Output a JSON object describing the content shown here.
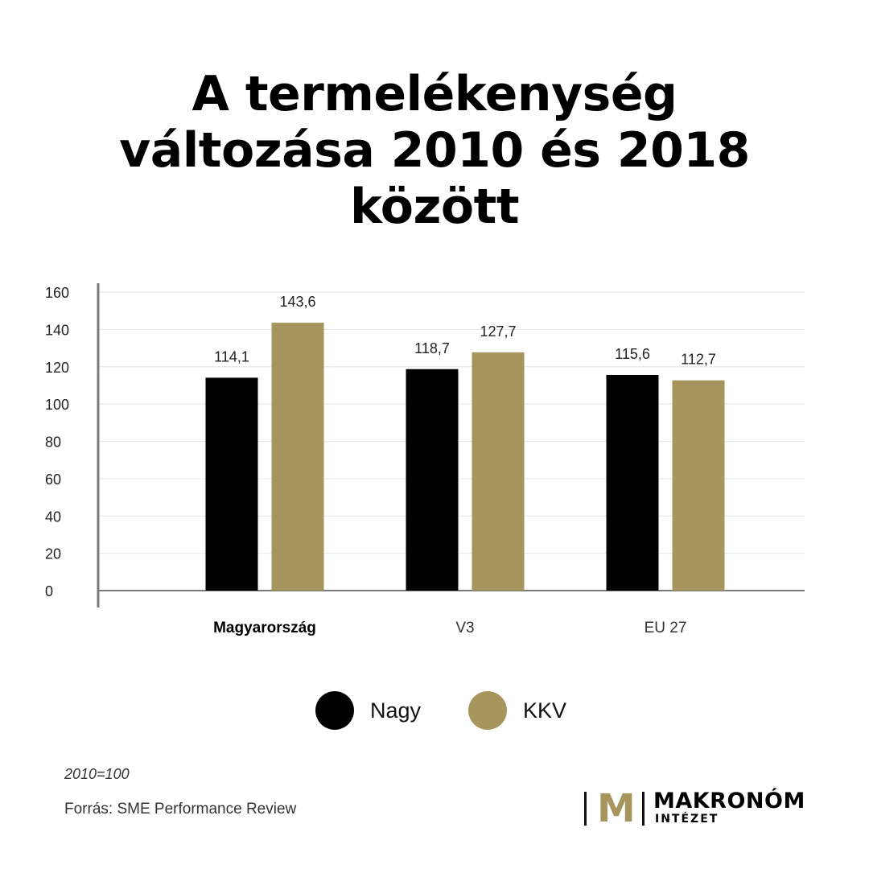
{
  "title_lines": [
    "A termelékenység",
    "változása 2010 és 2018",
    "között"
  ],
  "colors": {
    "nagy": "#000000",
    "kkv": "#a6965e",
    "grid": "#e6e6e6",
    "axis": "#7a7a7a"
  },
  "chart_data": {
    "type": "bar",
    "categories": [
      "Magyarország",
      "V3",
      "EU 27"
    ],
    "series": [
      {
        "name": "Nagy",
        "values": [
          114.1,
          118.7,
          115.6
        ],
        "labels": [
          "114,1",
          "118,7",
          "115,6"
        ]
      },
      {
        "name": "KKV",
        "values": [
          143.6,
          127.7,
          112.7
        ],
        "labels": [
          "143,6",
          "127,7",
          "112,7"
        ]
      }
    ],
    "y_ticks": [
      "0",
      "20",
      "40",
      "60",
      "80",
      "100",
      "120",
      "140",
      "160"
    ],
    "ylim": [
      0,
      160
    ],
    "grid": true,
    "legend_position": "bottom"
  },
  "legend": {
    "nagy": "Nagy",
    "kkv": "KKV"
  },
  "footer": {
    "note": "2010=100",
    "source": "Forrás: SME Performance Review"
  },
  "logo": {
    "mark": "M",
    "name": "MAKRONÓM",
    "sub": "INTÉZET"
  }
}
